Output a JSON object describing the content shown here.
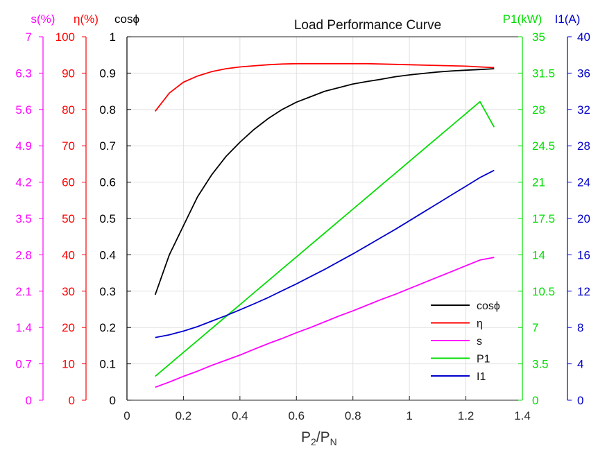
{
  "chart_data": {
    "type": "line",
    "title": "Load Performance Curve",
    "xlabel": "P2/PN",
    "xlabel_main": "P",
    "xlabel_sub1": "2",
    "xlabel_slash": "/P",
    "xlabel_sub2": "N",
    "xlim": [
      0,
      1.4
    ],
    "xticks": [
      0,
      0.2,
      0.4,
      0.6,
      0.8,
      1,
      1.2,
      1.4
    ],
    "grid": true,
    "legend_position": "bottom-right",
    "axes": [
      {
        "id": "s",
        "label": "s(%)",
        "side": "left",
        "color": "#ff00ff",
        "lim": [
          0,
          7
        ],
        "ticks": [
          0,
          0.7,
          1.4,
          2.1,
          2.8,
          3.5,
          4.2,
          4.9,
          5.6,
          6.3,
          7
        ]
      },
      {
        "id": "eta",
        "label": "η(%)",
        "side": "left",
        "color": "#ff0000",
        "lim": [
          0,
          100
        ],
        "ticks": [
          0,
          10,
          20,
          30,
          40,
          50,
          60,
          70,
          80,
          90,
          100
        ]
      },
      {
        "id": "cos",
        "label": "cosϕ",
        "side": "left",
        "color": "#000000",
        "lim": [
          0,
          1
        ],
        "ticks": [
          0,
          0.1,
          0.2,
          0.3,
          0.4,
          0.5,
          0.6,
          0.7,
          0.8,
          0.9,
          1
        ]
      },
      {
        "id": "p1",
        "label": "P1(kW)",
        "side": "right",
        "color": "#00dd00",
        "lim": [
          0,
          35
        ],
        "ticks": [
          0,
          3.5,
          7,
          10.5,
          14,
          17.5,
          21,
          24.5,
          28,
          31.5,
          35
        ]
      },
      {
        "id": "i1",
        "label": "I1(A)",
        "side": "right",
        "color": "#0000cc",
        "lim": [
          0,
          40
        ],
        "ticks": [
          0,
          4,
          8,
          12,
          16,
          20,
          24,
          28,
          32,
          36,
          40
        ]
      }
    ],
    "x": [
      0.1,
      0.15,
      0.2,
      0.25,
      0.3,
      0.35,
      0.4,
      0.45,
      0.5,
      0.55,
      0.6,
      0.65,
      0.7,
      0.75,
      0.8,
      0.85,
      0.9,
      0.95,
      1.0,
      1.05,
      1.1,
      1.15,
      1.2,
      1.25,
      1.3
    ],
    "series": [
      {
        "name": "cosϕ",
        "axis": "cos",
        "color": "#000000",
        "values": [
          0.29,
          0.4,
          0.48,
          0.56,
          0.62,
          0.67,
          0.71,
          0.745,
          0.775,
          0.8,
          0.82,
          0.835,
          0.85,
          0.86,
          0.87,
          0.877,
          0.883,
          0.89,
          0.895,
          0.899,
          0.903,
          0.906,
          0.908,
          0.91,
          0.912
        ]
      },
      {
        "name": "η",
        "axis": "eta",
        "color": "#ff0000",
        "values": [
          79.5,
          84.5,
          87.5,
          89.2,
          90.4,
          91.2,
          91.7,
          92.0,
          92.3,
          92.5,
          92.6,
          92.6,
          92.6,
          92.6,
          92.6,
          92.6,
          92.5,
          92.4,
          92.3,
          92.2,
          92.1,
          92.0,
          91.9,
          91.7,
          91.5
        ]
      },
      {
        "name": "s",
        "axis": "s",
        "color": "#ff00ff",
        "values": [
          0.25,
          0.35,
          0.46,
          0.56,
          0.67,
          0.77,
          0.87,
          0.98,
          1.09,
          1.19,
          1.3,
          1.4,
          1.51,
          1.62,
          1.72,
          1.83,
          1.94,
          2.04,
          2.15,
          2.26,
          2.37,
          2.48,
          2.59,
          2.7,
          2.75
        ]
      },
      {
        "name": "P1",
        "axis": "p1",
        "color": "#00dd00",
        "values": [
          2.3,
          3.45,
          4.6,
          5.75,
          6.9,
          8.05,
          9.2,
          10.35,
          11.5,
          12.65,
          13.8,
          14.95,
          16.1,
          17.25,
          18.4,
          19.55,
          20.7,
          21.85,
          23.0,
          24.15,
          25.3,
          26.45,
          27.6,
          28.75,
          26.3
        ]
      },
      {
        "name": "I1",
        "axis": "i1",
        "color": "#0000cc",
        "values": [
          6.9,
          7.2,
          7.6,
          8.1,
          8.7,
          9.3,
          9.95,
          10.6,
          11.3,
          12.05,
          12.8,
          13.6,
          14.4,
          15.25,
          16.1,
          17.0,
          17.9,
          18.8,
          19.75,
          20.7,
          21.65,
          22.6,
          23.55,
          24.5,
          25.3
        ]
      }
    ]
  }
}
